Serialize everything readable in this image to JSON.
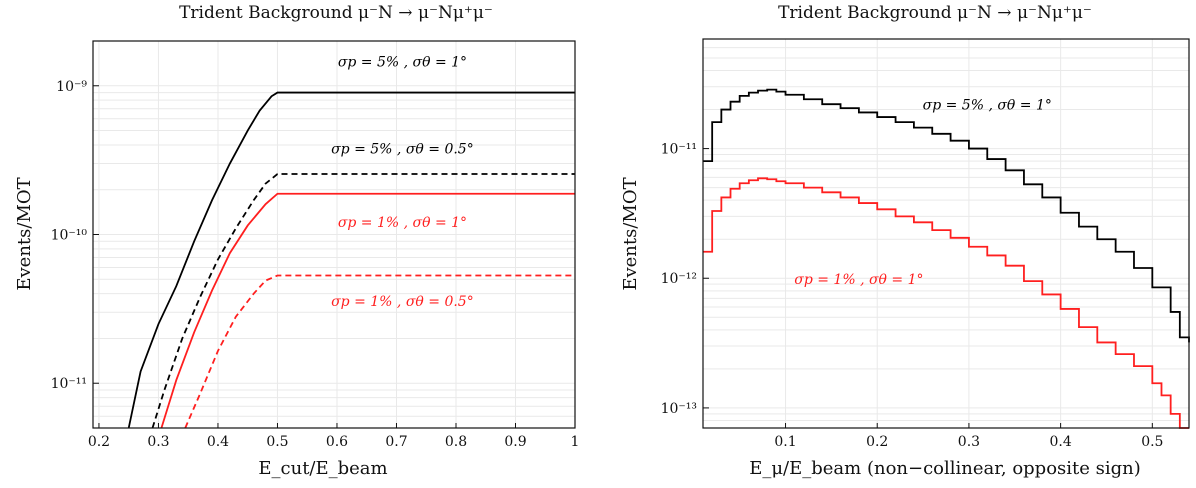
{
  "colors": {
    "black": "#000000",
    "red": "#ff1f1f",
    "grid": "#e9e9e9"
  },
  "chart_data": [
    {
      "type": "line",
      "title": "Trident Background  μ⁻N → μ⁻Nμ⁺μ⁻",
      "xlabel": "E_cut/E_beam",
      "ylabel": "Events/MOT",
      "xlim": [
        0.19,
        1.0
      ],
      "ylim": [
        5e-12,
        2e-09
      ],
      "yscale": "log",
      "grid": true,
      "x_ticks": [
        "0.2",
        "0.3",
        "0.4",
        "0.5",
        "0.6",
        "0.7",
        "0.8",
        "0.9",
        "1"
      ],
      "y_ticks": [
        "10⁻⁹",
        "10⁻¹⁰",
        "10⁻¹¹"
      ],
      "series": [
        {
          "name": "σp = 5% ,  σθ = 1°",
          "color": "#000000",
          "dash": "solid",
          "x": [
            0.25,
            0.27,
            0.3,
            0.33,
            0.36,
            0.39,
            0.42,
            0.45,
            0.47,
            0.49,
            0.5,
            1.0
          ],
          "y": [
            5e-12,
            1.2e-11,
            2.5e-11,
            4.5e-11,
            9e-11,
            1.7e-10,
            3e-10,
            5e-10,
            6.8e-10,
            8.5e-10,
            9e-10,
            9e-10
          ]
        },
        {
          "name": "σp = 5% ,  σθ = 0.5°",
          "color": "#000000",
          "dash": "dashed",
          "x": [
            0.29,
            0.31,
            0.34,
            0.37,
            0.4,
            0.43,
            0.46,
            0.48,
            0.5,
            1.0
          ],
          "y": [
            5e-12,
            9e-12,
            2e-11,
            3.8e-11,
            6.8e-11,
            1.1e-10,
            1.7e-10,
            2.2e-10,
            2.55e-10,
            2.55e-10
          ]
        },
        {
          "name": "σp = 1% ,  σθ = 1°",
          "color": "#ff1f1f",
          "dash": "solid",
          "x": [
            0.305,
            0.33,
            0.36,
            0.39,
            0.42,
            0.45,
            0.48,
            0.5,
            1.0
          ],
          "y": [
            5e-12,
            1.05e-11,
            2.2e-11,
            4.2e-11,
            7.5e-11,
            1.15e-10,
            1.6e-10,
            1.88e-10,
            1.88e-10
          ]
        },
        {
          "name": "σp = 1% ,  σθ = 0.5°",
          "color": "#ff1f1f",
          "dash": "dashed",
          "x": [
            0.345,
            0.37,
            0.4,
            0.43,
            0.46,
            0.48,
            0.5,
            1.0
          ],
          "y": [
            5e-12,
            8.5e-12,
            1.65e-11,
            2.8e-11,
            4e-11,
            4.9e-11,
            5.3e-11,
            5.3e-11
          ]
        }
      ],
      "annotations": [
        {
          "text": "σp = 5% ,  σθ = 1°",
          "color": "#000000",
          "x": 0.71,
          "y": 1.35e-09
        },
        {
          "text": "σp = 5% ,  σθ = 0.5°",
          "color": "#000000",
          "x": 0.71,
          "y": 3.5e-10
        },
        {
          "text": "σp = 1% ,  σθ = 1°",
          "color": "#ff1f1f",
          "x": 0.71,
          "y": 1.12e-10
        },
        {
          "text": "σp = 1% ,  σθ = 0.5°",
          "color": "#ff1f1f",
          "x": 0.71,
          "y": 3.3e-11
        }
      ]
    },
    {
      "type": "line",
      "title": "Trident Background  μ⁻N → μ⁻Nμ⁺μ⁻",
      "xlabel": "E_μ/E_beam  (non−collinear,  opposite sign)",
      "ylabel": "Events/MOT",
      "xlim": [
        0.01,
        0.54
      ],
      "ylim": [
        7e-14,
        7e-11
      ],
      "yscale": "log",
      "grid": true,
      "x_ticks": [
        "0.1",
        "0.2",
        "0.3",
        "0.4",
        "0.5"
      ],
      "y_ticks": [
        "10⁻¹¹",
        "10⁻¹²",
        "10⁻¹³"
      ],
      "series": [
        {
          "name": "σp = 5% ,  σθ = 1°",
          "color": "#000000",
          "step": true,
          "x": [
            0.01,
            0.02,
            0.03,
            0.04,
            0.05,
            0.06,
            0.07,
            0.08,
            0.09,
            0.1,
            0.12,
            0.14,
            0.16,
            0.18,
            0.2,
            0.22,
            0.24,
            0.26,
            0.28,
            0.3,
            0.32,
            0.34,
            0.36,
            0.38,
            0.4,
            0.42,
            0.44,
            0.46,
            0.48,
            0.5,
            0.52,
            0.53,
            0.54
          ],
          "y": [
            8e-12,
            1.6e-11,
            2e-11,
            2.3e-11,
            2.55e-11,
            2.7e-11,
            2.8e-11,
            2.85e-11,
            2.75e-11,
            2.6e-11,
            2.4e-11,
            2.2e-11,
            2.05e-11,
            1.9e-11,
            1.75e-11,
            1.6e-11,
            1.45e-11,
            1.3e-11,
            1.15e-11,
            1e-11,
            8.3e-12,
            6.8e-12,
            5.3e-12,
            4.2e-12,
            3.2e-12,
            2.5e-12,
            2e-12,
            1.6e-12,
            1.2e-12,
            8.5e-13,
            5.5e-13,
            3.5e-13,
            3.2e-13
          ]
        },
        {
          "name": "σp = 1% ,  σθ = 1°",
          "color": "#ff1f1f",
          "step": true,
          "x": [
            0.01,
            0.02,
            0.03,
            0.04,
            0.05,
            0.06,
            0.07,
            0.08,
            0.09,
            0.1,
            0.12,
            0.14,
            0.16,
            0.18,
            0.2,
            0.22,
            0.24,
            0.26,
            0.28,
            0.3,
            0.32,
            0.34,
            0.36,
            0.38,
            0.4,
            0.42,
            0.44,
            0.46,
            0.48,
            0.5,
            0.51,
            0.52,
            0.53
          ],
          "y": [
            1.6e-12,
            3.3e-12,
            4.2e-12,
            4.9e-12,
            5.4e-12,
            5.7e-12,
            5.9e-12,
            5.8e-12,
            5.6e-12,
            5.4e-12,
            5e-12,
            4.6e-12,
            4.2e-12,
            3.8e-12,
            3.4e-12,
            3e-12,
            2.7e-12,
            2.35e-12,
            2.05e-12,
            1.75e-12,
            1.5e-12,
            1.25e-12,
            9.5e-13,
            7.5e-13,
            5.8e-13,
            4.2e-13,
            3.2e-13,
            2.6e-13,
            2.1e-13,
            1.55e-13,
            1.25e-13,
            9e-14,
            7e-14
          ]
        }
      ],
      "annotations": [
        {
          "text": "σp = 5% ,  σθ = 1°",
          "color": "#000000",
          "x": 0.32,
          "y": 2e-11
        },
        {
          "text": "σp = 1% ,  σθ = 1°",
          "color": "#ff1f1f",
          "x": 0.18,
          "y": 9e-13
        }
      ]
    }
  ]
}
